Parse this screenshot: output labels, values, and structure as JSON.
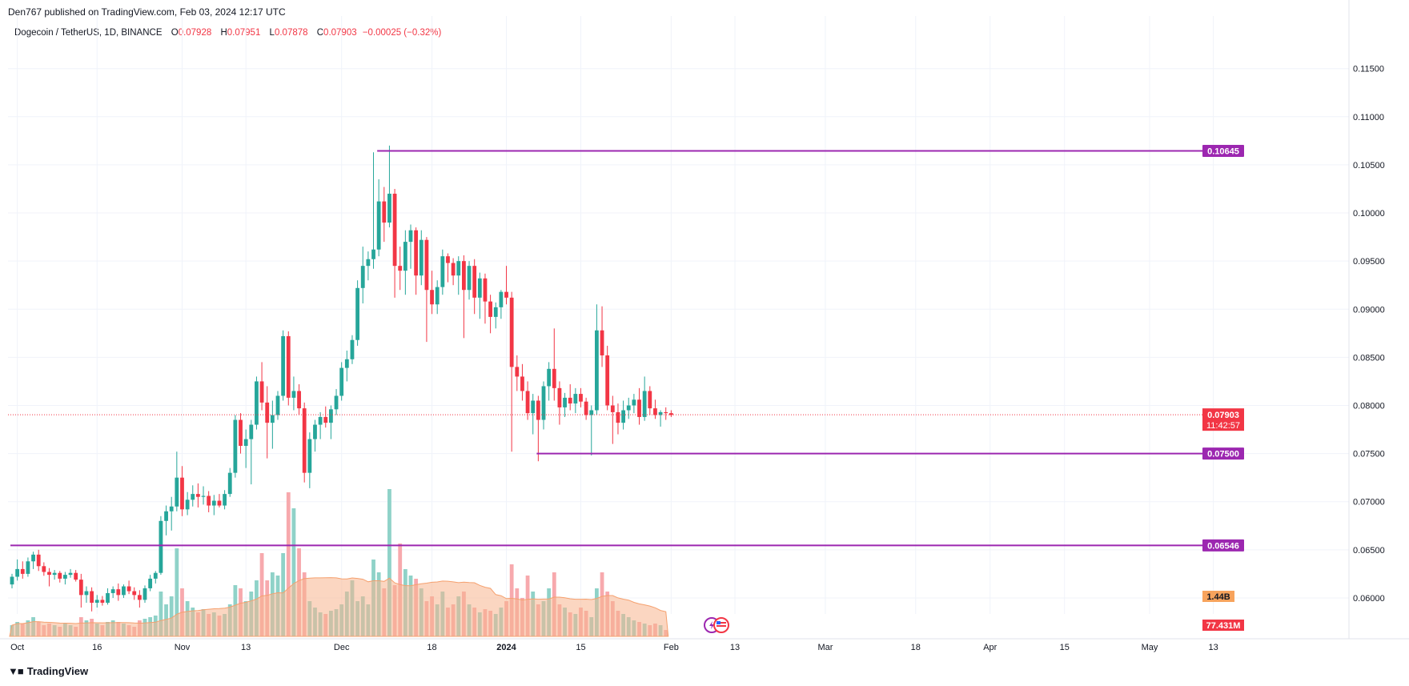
{
  "header": {
    "publisher": "Den767 published on TradingView.com, Feb 03, 2024 12:17 UTC"
  },
  "legend": {
    "symbol": "Dogecoin / TetherUS, 1D, BINANCE",
    "open_label": "O",
    "open": "0.07928",
    "high_label": "H",
    "high": "0.07951",
    "low_label": "L",
    "low": "0.07878",
    "close_label": "C",
    "close": "0.07903",
    "change": "−0.00025 (−0.32%)"
  },
  "footer": {
    "brand": "TradingView",
    "logo_icon": "tradingview-logo-icon"
  },
  "colors": {
    "up": "#26a69a",
    "down": "#f23645",
    "level": "#9c27b0",
    "volume_up": "#8fd2c8",
    "volume_down": "#f7a9ad",
    "volume_ma": "#f7b48e"
  },
  "chart_data": {
    "type": "candlestick",
    "title": "Dogecoin / TetherUS, 1D, BINANCE",
    "y_ticks": [
      "0.11500",
      "0.11000",
      "0.10500",
      "0.10000",
      "0.09500",
      "0.09000",
      "0.08500",
      "0.08000",
      "0.07500",
      "0.07000",
      "0.06500",
      "0.06000"
    ],
    "x_ticks": [
      {
        "label": "Oct",
        "date": "2023-10-01",
        "bold": false
      },
      {
        "label": "16",
        "date": "2023-10-16",
        "bold": false
      },
      {
        "label": "Nov",
        "date": "2023-11-01",
        "bold": false
      },
      {
        "label": "13",
        "date": "2023-11-13",
        "bold": false
      },
      {
        "label": "Dec",
        "date": "2023-12-01",
        "bold": false
      },
      {
        "label": "18",
        "date": "2023-12-18",
        "bold": false
      },
      {
        "label": "2024",
        "date": "2024-01-01",
        "bold": true
      },
      {
        "label": "15",
        "date": "2024-01-15",
        "bold": false
      },
      {
        "label": "Feb",
        "date": "2024-02-01",
        "bold": false
      },
      {
        "label": "13",
        "date": "2024-02-13",
        "bold": false
      },
      {
        "label": "Mar",
        "date": "2024-03-01",
        "bold": false
      },
      {
        "label": "18",
        "date": "2024-03-18",
        "bold": false
      },
      {
        "label": "Apr",
        "date": "2024-04-01",
        "bold": false
      },
      {
        "label": "15",
        "date": "2024-04-15",
        "bold": false
      },
      {
        "label": "May",
        "date": "2024-05-01",
        "bold": false
      },
      {
        "label": "13",
        "date": "2024-05-13",
        "bold": false
      }
    ],
    "start_date": "2023-09-30",
    "ohlc": [
      [
        0.0614,
        0.0625,
        0.061,
        0.0622
      ],
      [
        0.0622,
        0.064,
        0.0618,
        0.063
      ],
      [
        0.063,
        0.0638,
        0.062,
        0.0625
      ],
      [
        0.0625,
        0.0642,
        0.0622,
        0.0638
      ],
      [
        0.0638,
        0.0648,
        0.063,
        0.0645
      ],
      [
        0.0645,
        0.065,
        0.0628,
        0.0633
      ],
      [
        0.0633,
        0.0637,
        0.0623,
        0.0627
      ],
      [
        0.0627,
        0.0631,
        0.0612,
        0.0624
      ],
      [
        0.0624,
        0.0629,
        0.0619,
        0.0626
      ],
      [
        0.0626,
        0.0628,
        0.0616,
        0.062
      ],
      [
        0.062,
        0.0627,
        0.0614,
        0.0624
      ],
      [
        0.0624,
        0.063,
        0.0621,
        0.0626
      ],
      [
        0.0626,
        0.0629,
        0.0617,
        0.0619
      ],
      [
        0.0619,
        0.0625,
        0.059,
        0.0603
      ],
      [
        0.0603,
        0.0612,
        0.0595,
        0.0607
      ],
      [
        0.0607,
        0.0611,
        0.0586,
        0.0595
      ],
      [
        0.0595,
        0.0603,
        0.059,
        0.0598
      ],
      [
        0.0598,
        0.0602,
        0.0592,
        0.0595
      ],
      [
        0.0595,
        0.061,
        0.0593,
        0.0605
      ],
      [
        0.0605,
        0.0612,
        0.06,
        0.0609
      ],
      [
        0.0609,
        0.0615,
        0.0597,
        0.0603
      ],
      [
        0.0603,
        0.0614,
        0.06,
        0.0612
      ],
      [
        0.0612,
        0.0618,
        0.0604,
        0.0607
      ],
      [
        0.0607,
        0.0611,
        0.0598,
        0.0603
      ],
      [
        0.0603,
        0.0608,
        0.059,
        0.0598
      ],
      [
        0.0598,
        0.0613,
        0.0595,
        0.061
      ],
      [
        0.061,
        0.0624,
        0.0607,
        0.062
      ],
      [
        0.062,
        0.0628,
        0.0615,
        0.0626
      ],
      [
        0.0626,
        0.0685,
        0.0624,
        0.068
      ],
      [
        0.068,
        0.0696,
        0.0665,
        0.069
      ],
      [
        0.069,
        0.0705,
        0.067,
        0.0695
      ],
      [
        0.0695,
        0.0752,
        0.069,
        0.0725
      ],
      [
        0.0725,
        0.0737,
        0.0685,
        0.0692
      ],
      [
        0.0692,
        0.071,
        0.0686,
        0.0702
      ],
      [
        0.0702,
        0.0717,
        0.0695,
        0.0708
      ],
      [
        0.0708,
        0.0719,
        0.0694,
        0.0705
      ],
      [
        0.0705,
        0.0716,
        0.0697,
        0.0706
      ],
      [
        0.0706,
        0.0711,
        0.0689,
        0.0696
      ],
      [
        0.0696,
        0.0707,
        0.0686,
        0.0701
      ],
      [
        0.0701,
        0.0708,
        0.0694,
        0.0696
      ],
      [
        0.0696,
        0.0712,
        0.0692,
        0.0708
      ],
      [
        0.0708,
        0.0735,
        0.0705,
        0.073
      ],
      [
        0.073,
        0.079,
        0.0725,
        0.0785
      ],
      [
        0.0785,
        0.0792,
        0.075,
        0.0758
      ],
      [
        0.0758,
        0.0775,
        0.0735,
        0.0765
      ],
      [
        0.0765,
        0.0785,
        0.0718,
        0.078
      ],
      [
        0.078,
        0.083,
        0.0775,
        0.0825
      ],
      [
        0.0825,
        0.0845,
        0.0795,
        0.0803
      ],
      [
        0.0803,
        0.082,
        0.0745,
        0.0782
      ],
      [
        0.0782,
        0.0805,
        0.0755,
        0.079
      ],
      [
        0.079,
        0.0815,
        0.0785,
        0.081
      ],
      [
        0.081,
        0.0878,
        0.0805,
        0.0872
      ],
      [
        0.0872,
        0.0877,
        0.08,
        0.0808
      ],
      [
        0.0808,
        0.083,
        0.0795,
        0.0815
      ],
      [
        0.0815,
        0.0822,
        0.079,
        0.0797
      ],
      [
        0.0797,
        0.0803,
        0.072,
        0.073
      ],
      [
        0.073,
        0.0772,
        0.0714,
        0.0765
      ],
      [
        0.0765,
        0.0785,
        0.0752,
        0.078
      ],
      [
        0.078,
        0.0793,
        0.0765,
        0.0788
      ],
      [
        0.0788,
        0.0799,
        0.0777,
        0.0782
      ],
      [
        0.0782,
        0.08,
        0.0765,
        0.0796
      ],
      [
        0.0796,
        0.0817,
        0.079,
        0.081
      ],
      [
        0.081,
        0.0845,
        0.0805,
        0.0839
      ],
      [
        0.0839,
        0.0857,
        0.0825,
        0.0848
      ],
      [
        0.0848,
        0.0873,
        0.0843,
        0.0868
      ],
      [
        0.0868,
        0.093,
        0.0862,
        0.0922
      ],
      [
        0.0922,
        0.0965,
        0.0906,
        0.0945
      ],
      [
        0.0945,
        0.096,
        0.093,
        0.0952
      ],
      [
        0.0952,
        0.1063,
        0.0942,
        0.0962
      ],
      [
        0.0962,
        0.1035,
        0.0955,
        0.1012
      ],
      [
        0.1012,
        0.1027,
        0.097,
        0.099
      ],
      [
        0.099,
        0.107,
        0.0985,
        0.102
      ],
      [
        0.102,
        0.1025,
        0.0912,
        0.0945
      ],
      [
        0.0945,
        0.0965,
        0.092,
        0.094
      ],
      [
        0.094,
        0.0982,
        0.0915,
        0.097
      ],
      [
        0.097,
        0.0988,
        0.0942,
        0.0982
      ],
      [
        0.0982,
        0.0985,
        0.0915,
        0.0935
      ],
      [
        0.0935,
        0.0982,
        0.0925,
        0.0972
      ],
      [
        0.0972,
        0.0975,
        0.0866,
        0.092
      ],
      [
        0.092,
        0.094,
        0.0895,
        0.0905
      ],
      [
        0.0905,
        0.093,
        0.0895,
        0.0923
      ],
      [
        0.0923,
        0.0962,
        0.0915,
        0.0955
      ],
      [
        0.0955,
        0.0958,
        0.0928,
        0.0948
      ],
      [
        0.0948,
        0.0953,
        0.0925,
        0.0935
      ],
      [
        0.0935,
        0.0955,
        0.0915,
        0.095
      ],
      [
        0.095,
        0.0956,
        0.087,
        0.092
      ],
      [
        0.092,
        0.095,
        0.091,
        0.0945
      ],
      [
        0.0945,
        0.0952,
        0.0895,
        0.0912
      ],
      [
        0.0912,
        0.0938,
        0.089,
        0.0932
      ],
      [
        0.0932,
        0.0937,
        0.0885,
        0.0908
      ],
      [
        0.0908,
        0.0915,
        0.0875,
        0.0892
      ],
      [
        0.0892,
        0.0907,
        0.088,
        0.0902
      ],
      [
        0.0902,
        0.092,
        0.089,
        0.0918
      ],
      [
        0.0918,
        0.0945,
        0.0905,
        0.0912
      ],
      [
        0.0912,
        0.0918,
        0.0752,
        0.084
      ],
      [
        0.084,
        0.0852,
        0.0815,
        0.083
      ],
      [
        0.083,
        0.0843,
        0.0805,
        0.0815
      ],
      [
        0.0815,
        0.0825,
        0.0785,
        0.0792
      ],
      [
        0.0792,
        0.0812,
        0.077,
        0.0805
      ],
      [
        0.0805,
        0.081,
        0.0742,
        0.0785
      ],
      [
        0.0785,
        0.0825,
        0.0775,
        0.082
      ],
      [
        0.082,
        0.0845,
        0.0805,
        0.0838
      ],
      [
        0.0838,
        0.088,
        0.0805,
        0.0818
      ],
      [
        0.0818,
        0.0825,
        0.078,
        0.0798
      ],
      [
        0.0798,
        0.0813,
        0.0788,
        0.0808
      ],
      [
        0.0808,
        0.0822,
        0.0795,
        0.0802
      ],
      [
        0.0802,
        0.0818,
        0.0792,
        0.0812
      ],
      [
        0.0812,
        0.0818,
        0.0798,
        0.0804
      ],
      [
        0.0804,
        0.0808,
        0.0785,
        0.079
      ],
      [
        0.079,
        0.08,
        0.0748,
        0.0795
      ],
      [
        0.0795,
        0.0905,
        0.079,
        0.0878
      ],
      [
        0.0878,
        0.0903,
        0.084,
        0.0852
      ],
      [
        0.0852,
        0.0862,
        0.0795,
        0.08
      ],
      [
        0.08,
        0.081,
        0.076,
        0.0793
      ],
      [
        0.0793,
        0.0802,
        0.077,
        0.0782
      ],
      [
        0.0782,
        0.0805,
        0.0775,
        0.0795
      ],
      [
        0.0795,
        0.0808,
        0.0786,
        0.08
      ],
      [
        0.08,
        0.0812,
        0.0792,
        0.0806
      ],
      [
        0.0806,
        0.0818,
        0.078,
        0.0788
      ],
      [
        0.0788,
        0.083,
        0.0784,
        0.0815
      ],
      [
        0.0815,
        0.082,
        0.079,
        0.0797
      ],
      [
        0.0797,
        0.0806,
        0.0786,
        0.079
      ],
      [
        0.079,
        0.0795,
        0.0778,
        0.0793
      ],
      [
        0.0793,
        0.0798,
        0.0785,
        0.0792
      ],
      [
        0.0792,
        0.0795,
        0.0788,
        0.079
      ]
    ],
    "volume_relative": [
      0.07,
      0.09,
      0.08,
      0.1,
      0.12,
      0.09,
      0.07,
      0.08,
      0.07,
      0.06,
      0.08,
      0.07,
      0.06,
      0.12,
      0.1,
      0.11,
      0.08,
      0.07,
      0.09,
      0.1,
      0.09,
      0.08,
      0.07,
      0.06,
      0.1,
      0.11,
      0.12,
      0.13,
      0.28,
      0.2,
      0.25,
      0.55,
      0.3,
      0.22,
      0.18,
      0.15,
      0.17,
      0.14,
      0.15,
      0.13,
      0.14,
      0.2,
      0.32,
      0.3,
      0.22,
      0.28,
      0.35,
      0.52,
      0.35,
      0.4,
      0.38,
      0.52,
      0.9,
      0.8,
      0.55,
      0.4,
      0.22,
      0.18,
      0.15,
      0.14,
      0.16,
      0.17,
      0.2,
      0.28,
      0.35,
      0.22,
      0.25,
      0.2,
      0.48,
      0.4,
      0.3,
      0.92,
      0.32,
      0.58,
      0.42,
      0.38,
      0.36,
      0.3,
      0.22,
      0.25,
      0.2,
      0.28,
      0.18,
      0.2,
      0.25,
      0.28,
      0.2,
      0.18,
      0.15,
      0.17,
      0.16,
      0.14,
      0.18,
      0.22,
      0.45,
      0.3,
      0.24,
      0.38,
      0.28,
      0.2,
      0.22,
      0.3,
      0.4,
      0.2,
      0.18,
      0.15,
      0.14,
      0.18,
      0.16,
      0.12,
      0.3,
      0.4,
      0.28,
      0.22,
      0.16,
      0.14,
      0.12,
      0.1,
      0.09,
      0.08,
      0.07,
      0.08,
      0.07,
      0.04
    ],
    "levels": [
      {
        "value": 0.10645,
        "label": "0.10645",
        "start_index": 69
      },
      {
        "value": 0.075,
        "label": "0.07500",
        "start_index": 99
      },
      {
        "value": 0.06546,
        "label": "0.06546",
        "start_index": 0
      }
    ],
    "last_price": {
      "value": 0.07903,
      "label": "0.07903",
      "countdown": "11:42:57"
    },
    "volume_badge": "1.44B",
    "volume_ma_badge": "77.431M",
    "ylim": [
      0.0585,
      0.1188
    ]
  }
}
